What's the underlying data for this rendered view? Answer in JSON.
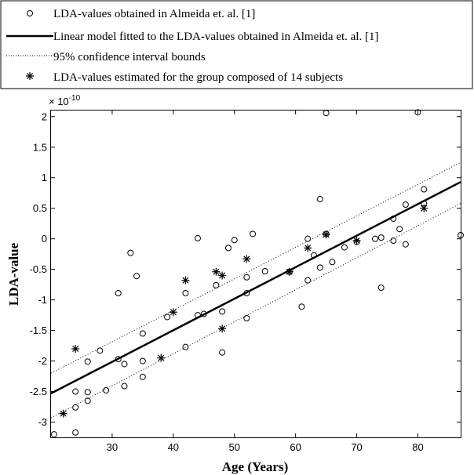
{
  "chart_data": {
    "type": "scatter",
    "xlabel": "Age (Years)",
    "ylabel": "LDA-value",
    "y_multiplier": "× 10",
    "y_multiplier_exp": "-10",
    "xlim": [
      20,
      87
    ],
    "ylim": [
      -3.25,
      2.1
    ],
    "x_ticks": [
      30,
      40,
      50,
      60,
      70,
      80
    ],
    "x_tick_labels": [
      "30",
      "40",
      "50",
      "60",
      "70",
      "80"
    ],
    "y_ticks": [
      -3,
      -2.5,
      -2,
      -1.5,
      -1,
      -0.5,
      0,
      0.5,
      1,
      1.5,
      2
    ],
    "y_tick_labels": [
      "-3",
      "-2.5",
      "-2",
      "-1.5",
      "-1",
      "-0.5",
      "0",
      "0.5",
      "1",
      "1.5",
      "2"
    ],
    "grid": false,
    "legend_position": "top",
    "legend": [
      {
        "marker": "circle",
        "label": "LDA-values obtained in Almeida et. al. [1]"
      },
      {
        "marker": "solid-line",
        "label": "Linear model fitted to the LDA-values obtained in Almeida et. al. [1]"
      },
      {
        "marker": "dotted-line",
        "label": "95% confidence interval bounds"
      },
      {
        "marker": "star",
        "label": "LDA-values estimated for the group composed of 14 subjects"
      }
    ],
    "series": [
      {
        "name": "LDA-values obtained in Almeida et. al. [1]",
        "marker": "circle",
        "points": [
          [
            20.5,
            -3.2
          ],
          [
            24,
            -3.17
          ],
          [
            24,
            -2.5
          ],
          [
            24,
            -2.76
          ],
          [
            26,
            -2.51
          ],
          [
            26,
            -2.65
          ],
          [
            26,
            -2.01
          ],
          [
            28,
            -1.83
          ],
          [
            29,
            -2.48
          ],
          [
            31,
            -0.89
          ],
          [
            31,
            -1.97
          ],
          [
            32,
            -2.05
          ],
          [
            32,
            -2.41
          ],
          [
            33,
            -0.23
          ],
          [
            34,
            -0.61
          ],
          [
            35,
            -1.55
          ],
          [
            35,
            -2.0
          ],
          [
            35,
            -2.26
          ],
          [
            39,
            -1.28
          ],
          [
            42,
            -0.89
          ],
          [
            42,
            -1.77
          ],
          [
            44,
            0.01
          ],
          [
            44,
            -1.25
          ],
          [
            45,
            -1.23
          ],
          [
            47,
            -0.76
          ],
          [
            48,
            -1.19
          ],
          [
            48,
            -1.86
          ],
          [
            49,
            -0.15
          ],
          [
            50,
            -0.02
          ],
          [
            52,
            -0.63
          ],
          [
            52,
            -0.89
          ],
          [
            52,
            -1.3
          ],
          [
            53,
            0.08
          ],
          [
            55,
            -0.53
          ],
          [
            59,
            -0.54
          ],
          [
            61,
            -1.11
          ],
          [
            62,
            0.0
          ],
          [
            62,
            -0.68
          ],
          [
            63,
            -0.27
          ],
          [
            64,
            0.65
          ],
          [
            64,
            -0.47
          ],
          [
            65,
            2.06
          ],
          [
            65,
            0.08
          ],
          [
            66,
            -0.38
          ],
          [
            68,
            -0.14
          ],
          [
            70,
            -0.05
          ],
          [
            73,
            0.0
          ],
          [
            74,
            0.02
          ],
          [
            74,
            -0.8
          ],
          [
            76,
            0.33
          ],
          [
            76,
            -0.03
          ],
          [
            77,
            0.16
          ],
          [
            78,
            0.56
          ],
          [
            78,
            -0.09
          ],
          [
            80,
            2.07
          ],
          [
            81,
            0.81
          ],
          [
            81,
            0.58
          ],
          [
            87,
            0.06
          ]
        ]
      },
      {
        "name": "LDA-values estimated for the group composed of 14 subjects",
        "marker": "star",
        "points": [
          [
            22,
            -2.86
          ],
          [
            24,
            -1.8
          ],
          [
            38,
            -1.95
          ],
          [
            40,
            -1.2
          ],
          [
            42,
            -0.68
          ],
          [
            47,
            -0.54
          ],
          [
            48,
            -0.6
          ],
          [
            48,
            -1.47
          ],
          [
            52,
            -0.33
          ],
          [
            59,
            -0.54
          ],
          [
            62,
            -0.15
          ],
          [
            65,
            0.07
          ],
          [
            70,
            -0.03
          ],
          [
            81,
            0.5
          ]
        ]
      },
      {
        "name": "Linear model fitted to the LDA-values obtained in Almeida et. al. [1]",
        "marker": "solid-line",
        "points": [
          [
            20,
            -2.53
          ],
          [
            87,
            0.93
          ]
        ]
      },
      {
        "name": "95% confidence interval bounds (upper)",
        "marker": "dotted-line",
        "points": [
          [
            20,
            -2.2
          ],
          [
            87,
            1.25
          ]
        ]
      },
      {
        "name": "95% confidence interval bounds (lower)",
        "marker": "dotted-line",
        "points": [
          [
            20,
            -2.93
          ],
          [
            87,
            0.58
          ]
        ]
      }
    ]
  }
}
